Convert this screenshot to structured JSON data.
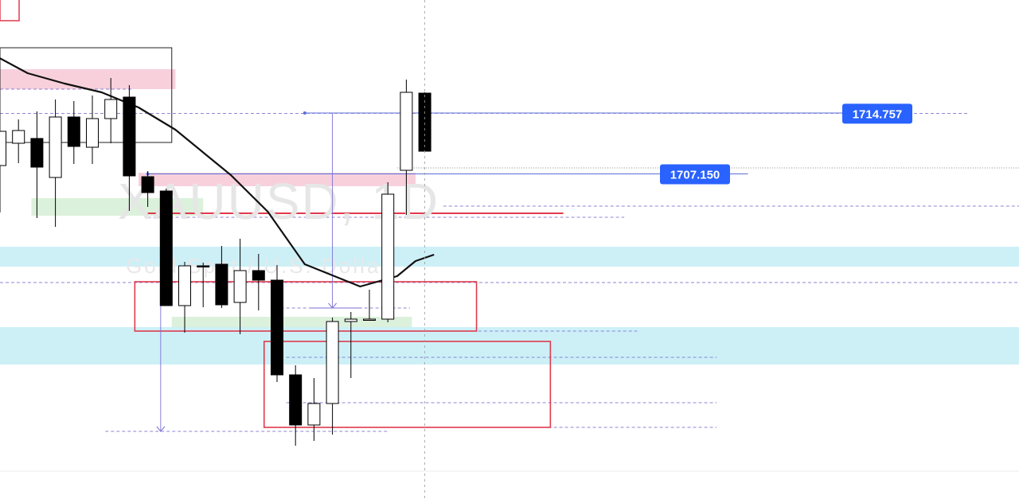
{
  "watermark": {
    "symbol": "XAUUSD, 1D",
    "description": "Gold Spot / U.S. Dollar"
  },
  "price_tags": [
    {
      "price": 1714.757,
      "label": "1714.757"
    },
    {
      "price": 1707.15,
      "label": "1707.150"
    }
  ],
  "colors": {
    "bull_body": "#ffffff",
    "bear_body": "#000000",
    "candle_outline": "#000000",
    "moving_average": "#111111",
    "zone_pink": "#f7d0dc",
    "zone_cyan": "#cdf0f7",
    "zone_green": "#d6eed6",
    "box_red": "#e03a4c",
    "tag_blue": "#2962ff",
    "measure_line": "#7b6fd6"
  },
  "chart_data": {
    "type": "candlestick",
    "symbol": "XAUUSD",
    "timeframe": "1D",
    "ylim": [
      1672.0,
      1723.0
    ],
    "candles": [
      {
        "o": 1708.2,
        "h": 1712.0,
        "l": 1702.3,
        "c": 1712.5
      },
      {
        "o": 1711.0,
        "h": 1714.0,
        "l": 1708.5,
        "c": 1712.6
      },
      {
        "o": 1711.6,
        "h": 1715.0,
        "l": 1701.6,
        "c": 1708.0
      },
      {
        "o": 1706.7,
        "h": 1716.5,
        "l": 1700.5,
        "c": 1714.3
      },
      {
        "o": 1714.3,
        "h": 1716.3,
        "l": 1708.4,
        "c": 1710.6
      },
      {
        "o": 1710.5,
        "h": 1717.0,
        "l": 1708.4,
        "c": 1714.1
      },
      {
        "o": 1714.1,
        "h": 1719.2,
        "l": 1711.0,
        "c": 1716.5
      },
      {
        "o": 1716.8,
        "h": 1718.3,
        "l": 1702.5,
        "c": 1706.9
      },
      {
        "o": 1706.8,
        "h": 1707.5,
        "l": 1703.0,
        "c": 1704.8
      },
      {
        "o": 1705.0,
        "h": 1705.3,
        "l": 1690.6,
        "c": 1690.6
      },
      {
        "o": 1690.6,
        "h": 1696.1,
        "l": 1687.2,
        "c": 1695.6
      },
      {
        "o": 1695.6,
        "h": 1696.0,
        "l": 1690.4,
        "c": 1695.5
      },
      {
        "o": 1695.8,
        "h": 1698.1,
        "l": 1690.3,
        "c": 1690.7
      },
      {
        "o": 1691.0,
        "h": 1699.0,
        "l": 1687.0,
        "c": 1695.0
      },
      {
        "o": 1695.0,
        "h": 1697.1,
        "l": 1690.0,
        "c": 1693.8
      },
      {
        "o": 1693.8,
        "h": 1695.7,
        "l": 1681.0,
        "c": 1681.9
      },
      {
        "o": 1681.9,
        "h": 1683.1,
        "l": 1673.0,
        "c": 1675.6
      },
      {
        "o": 1675.6,
        "h": 1681.5,
        "l": 1673.6,
        "c": 1678.3
      },
      {
        "o": 1678.3,
        "h": 1689.1,
        "l": 1674.4,
        "c": 1688.6
      },
      {
        "o": 1688.6,
        "h": 1689.8,
        "l": 1681.5,
        "c": 1688.9
      },
      {
        "o": 1688.9,
        "h": 1692.6,
        "l": 1688.9,
        "c": 1688.9
      },
      {
        "o": 1688.9,
        "h": 1706.1,
        "l": 1688.5,
        "c": 1704.6
      },
      {
        "o": 1707.6,
        "h": 1719.0,
        "l": 1702.0,
        "c": 1717.4
      },
      {
        "o": 1717.3,
        "h": 1717.4,
        "l": 1710.0,
        "c": 1710.0
      }
    ],
    "moving_average": [
      [
        -0.5,
        1722.3
      ],
      [
        1.5,
        1719.8
      ],
      [
        3.5,
        1718.5
      ],
      [
        5.5,
        1717.4
      ],
      [
        7.5,
        1715.5
      ],
      [
        9.5,
        1712.7
      ],
      [
        12.5,
        1707.0
      ],
      [
        14.5,
        1702.4
      ],
      [
        16.5,
        1695.8
      ],
      [
        19.5,
        1693.0
      ],
      [
        21.5,
        1694.3
      ],
      [
        22.5,
        1696.2
      ],
      [
        23.5,
        1697.0
      ]
    ],
    "zones": [
      {
        "color": "pink",
        "from": -0.5,
        "to": 9.5,
        "top": 1720.3,
        "bottom": 1717.8
      },
      {
        "color": "pink",
        "from": 7.5,
        "to": 22.5,
        "top": 1707.3,
        "bottom": 1705.6
      },
      {
        "color": "green",
        "from": 1.7,
        "to": 11.0,
        "top": 1704.1,
        "bottom": 1701.9
      },
      {
        "color": "green",
        "from": 9.3,
        "to": 22.3,
        "top": 1689.2,
        "bottom": 1687.6
      },
      {
        "color": "cyan",
        "from": -0.5,
        "to": 56.0,
        "top": 1698.0,
        "bottom": 1695.5
      },
      {
        "color": "cyan",
        "from": -0.5,
        "to": 56.0,
        "top": 1687.9,
        "bottom": 1683.2
      }
    ],
    "boxes": [
      {
        "from": -0.5,
        "to": 9.3,
        "top": 1723.0,
        "bottom": 1711.1
      },
      {
        "from": 7.3,
        "to": 25.8,
        "top": 1693.6,
        "bottom": 1687.4
      },
      {
        "from": 14.3,
        "to": 29.8,
        "top": 1686.1,
        "bottom": 1675.3
      }
    ],
    "levels": [
      {
        "price": 1714.8,
        "from": 16.5,
        "to": 46.5,
        "style": "solid-blue"
      },
      {
        "price": 1714.76,
        "from": -0.5,
        "to": 52.5,
        "style": "dashed"
      },
      {
        "price": 1707.15,
        "from": 8.0,
        "to": 40.5,
        "style": "solid-blue"
      },
      {
        "price": 1707.9,
        "from": 21.5,
        "to": 56.0,
        "style": "dotted-gray"
      },
      {
        "price": 1702.2,
        "from": 8.0,
        "to": 30.5,
        "style": "solid-red"
      },
      {
        "price": 1701.7,
        "from": 8.0,
        "to": 33.8,
        "style": "dashed"
      },
      {
        "price": 1703.1,
        "from": 24.0,
        "to": 56.0,
        "style": "dashed"
      },
      {
        "price": 1717.8,
        "from": -0.5,
        "to": 7.2,
        "style": "dashed"
      },
      {
        "price": 1693.5,
        "from": -0.5,
        "to": 56.0,
        "style": "dashed"
      },
      {
        "price": 1690.3,
        "from": 14.9,
        "to": 22.2,
        "style": "dashed"
      },
      {
        "price": 1687.4,
        "from": 9.3,
        "to": 34.5,
        "style": "dashed"
      },
      {
        "price": 1684.1,
        "from": 15.5,
        "to": 38.8,
        "style": "dashed"
      },
      {
        "price": 1678.4,
        "from": 15.5,
        "to": 38.8,
        "style": "dashed"
      },
      {
        "price": 1675.3,
        "from": 15.5,
        "to": 38.8,
        "style": "dashed"
      },
      {
        "price": 1674.8,
        "from": 5.7,
        "to": 21.0,
        "style": "dashed"
      }
    ],
    "measures": [
      {
        "x": 18.0,
        "from": 1714.8,
        "to": 1690.3
      },
      {
        "x": 8.7,
        "from": 1701.9,
        "to": 1674.8
      }
    ],
    "cursor_x": 23.0
  }
}
